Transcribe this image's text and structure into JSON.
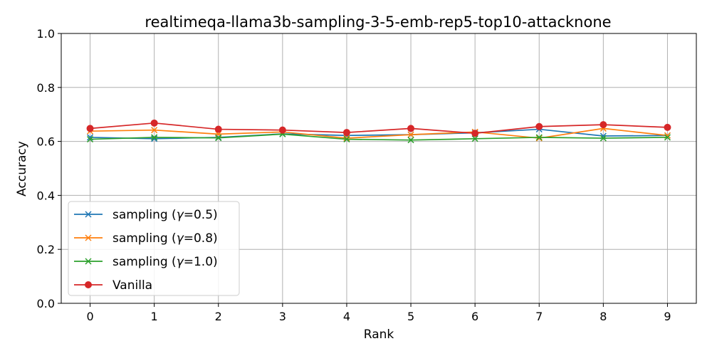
{
  "chart_data": {
    "type": "line",
    "title": "realtimeqa-llama3b-sampling-3-5-emb-rep5-top10-attacknone",
    "xlabel": "Rank",
    "ylabel": "Accuracy",
    "x": [
      0,
      1,
      2,
      3,
      4,
      5,
      6,
      7,
      8,
      9
    ],
    "xlim": [
      -0.45,
      9.45
    ],
    "ylim": [
      0.0,
      1.0
    ],
    "xticks": [
      "0",
      "1",
      "2",
      "3",
      "4",
      "5",
      "6",
      "7",
      "8",
      "9"
    ],
    "yticks": [
      "0.0",
      "0.2",
      "0.4",
      "0.6",
      "0.8",
      "1.0"
    ],
    "grid": true,
    "legend_position": "lower-left",
    "series": [
      {
        "name": "sampling (γ=0.5)",
        "name_prefix": "sampling (",
        "name_symbol": "γ",
        "name_suffix": "=0.5)",
        "color": "#1f77b4",
        "marker": "x",
        "values": [
          0.615,
          0.61,
          0.615,
          0.628,
          0.622,
          0.625,
          0.632,
          0.645,
          0.62,
          0.622
        ]
      },
      {
        "name": "sampling (γ=0.8)",
        "name_prefix": "sampling (",
        "name_symbol": "γ",
        "name_suffix": "=0.8)",
        "color": "#ff7f0e",
        "marker": "x",
        "values": [
          0.638,
          0.642,
          0.627,
          0.635,
          0.612,
          0.625,
          0.635,
          0.612,
          0.648,
          0.622
        ]
      },
      {
        "name": "sampling (γ=1.0)",
        "name_prefix": "sampling (",
        "name_symbol": "γ",
        "name_suffix": "=1.0)",
        "color": "#2ca02c",
        "marker": "x",
        "values": [
          0.608,
          0.615,
          0.613,
          0.627,
          0.608,
          0.605,
          0.61,
          0.615,
          0.612,
          0.615
        ]
      },
      {
        "name": "Vanilla",
        "name_prefix": "Vanilla",
        "name_symbol": "",
        "name_suffix": "",
        "color": "#d62728",
        "marker": "o",
        "values": [
          0.648,
          0.668,
          0.645,
          0.642,
          0.633,
          0.648,
          0.63,
          0.655,
          0.662,
          0.652
        ]
      }
    ]
  }
}
